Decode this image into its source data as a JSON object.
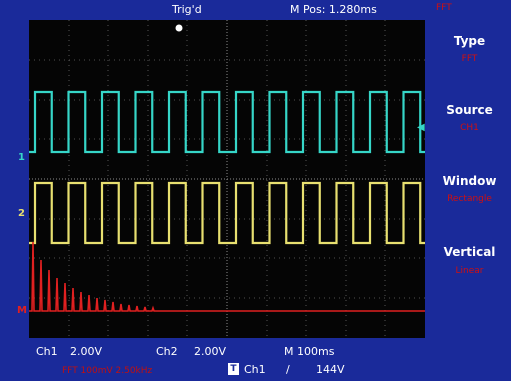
{
  "top": {
    "trigger_status": "Trig'd",
    "position": "M Pos: 1.280ms",
    "mode": "FFT"
  },
  "menu": {
    "type_label": "Type",
    "type_value": "FFT",
    "source_label": "Source",
    "source_value": "CH1",
    "window_label": "Window",
    "window_value": "Rectangle",
    "vertical_label": "Vertical",
    "vertical_value": "Linear"
  },
  "status": {
    "ch1_label": "Ch1",
    "ch1_scale": "2.00V",
    "ch2_label": "Ch2",
    "ch2_scale": "2.00V",
    "timebase": "M 100ms",
    "trig_badge": "T",
    "trig_source": "Ch1",
    "trig_slope": "/",
    "trig_level": "144V",
    "fft_info": "FFT 100mV 2.50kHz"
  },
  "markers": {
    "ch1": "1",
    "ch2": "2",
    "math": "M"
  },
  "colors": {
    "ch1": "#36d6c8",
    "ch2": "#e8e070",
    "math": "#e02020",
    "bezel": "#1a2a9a",
    "menu_value": "#d01010"
  }
}
